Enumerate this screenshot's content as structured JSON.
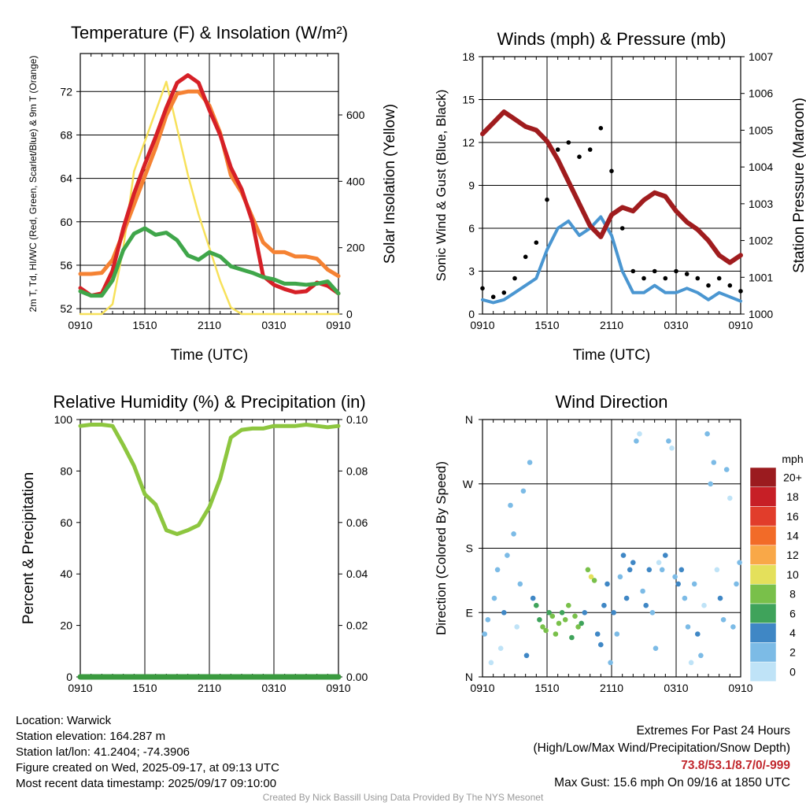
{
  "chart_data": [
    {
      "type": "line",
      "title": "Temperature (F) & Insolation (W/m²)",
      "xlabel": "Time (UTC)",
      "ylabel": "2m T, Td, HI/WC (Red, Green, Scarlet/Blue) & 9m T (Orange)",
      "y2label": "Solar Insolation (Yellow)",
      "x_ticks": [
        "0910",
        "1510",
        "2110",
        "0310",
        "0910"
      ],
      "ylim": [
        51.5,
        75.5
      ],
      "y_ticks": [
        52,
        56,
        60,
        64,
        68,
        72
      ],
      "y2lim": [
        0,
        785
      ],
      "y2_ticks": [
        0,
        200,
        400,
        600
      ],
      "x_hours": 24,
      "series": [
        {
          "color": "#d62027",
          "x": [
            0,
            1,
            2,
            3,
            4,
            5,
            6,
            7,
            8,
            9,
            10,
            11,
            12,
            13,
            14,
            15,
            16,
            17,
            18,
            19,
            20,
            21,
            22,
            23,
            24
          ],
          "values": [
            53.9,
            53.2,
            53.4,
            55.5,
            59.4,
            62.6,
            65.3,
            67.8,
            70.5,
            72.8,
            73.5,
            72.8,
            70.3,
            68.0,
            65.0,
            63.0,
            60.0,
            55.0,
            54.2,
            53.8,
            53.5,
            53.6,
            54.4,
            54.1,
            53.4
          ]
        },
        {
          "color": "#f58233",
          "x": [
            0,
            1,
            2,
            3,
            4,
            5,
            6,
            7,
            8,
            9,
            10,
            11,
            12,
            13,
            14,
            15,
            16,
            17,
            18,
            19,
            20,
            21,
            22,
            23,
            24
          ],
          "values": [
            55.2,
            55.2,
            55.3,
            56.5,
            59.0,
            61.6,
            64.2,
            66.8,
            69.8,
            71.8,
            72.0,
            72.0,
            70.7,
            68.2,
            64.3,
            62.7,
            60.4,
            58.1,
            57.2,
            57.2,
            56.8,
            56.8,
            56.6,
            55.6,
            55.0
          ]
        },
        {
          "color": "#3fa64a",
          "x": [
            0,
            1,
            2,
            3,
            4,
            5,
            6,
            7,
            8,
            9,
            10,
            11,
            12,
            13,
            14,
            15,
            16,
            17,
            18,
            19,
            20,
            21,
            22,
            23,
            24
          ],
          "values": [
            53.6,
            53.2,
            53.2,
            54.6,
            57.4,
            58.9,
            59.4,
            58.8,
            59.0,
            58.3,
            56.9,
            56.5,
            57.2,
            56.8,
            55.9,
            55.6,
            55.3,
            54.9,
            54.7,
            54.3,
            54.3,
            54.2,
            54.3,
            54.5,
            53.4
          ]
        },
        {
          "color": "#f7e15a",
          "axis": "y2",
          "x": [
            0,
            1,
            2,
            3,
            4,
            5,
            6,
            7,
            8,
            9,
            10,
            11,
            12,
            13,
            14,
            15,
            16,
            17,
            18,
            19,
            20,
            21,
            22,
            23,
            24
          ],
          "values": [
            0,
            0,
            0,
            30,
            200,
            430,
            520,
            610,
            700,
            560,
            420,
            300,
            200,
            100,
            20,
            0,
            0,
            0,
            0,
            0,
            0,
            0,
            0,
            0,
            0
          ]
        }
      ]
    },
    {
      "type": "scatter",
      "title": "Winds (mph) & Pressure (mb)",
      "xlabel": "Time (UTC)",
      "ylabel": "Sonic Wind & Gust (Blue, Black)",
      "y2label": "Station Pressure (Maroon)",
      "x_ticks": [
        "0910",
        "1510",
        "2110",
        "0310",
        "0910"
      ],
      "ylim": [
        0,
        18
      ],
      "y_ticks": [
        0,
        3,
        6,
        9,
        12,
        15,
        18
      ],
      "y2lim": [
        1000,
        1007
      ],
      "y2_ticks": [
        1000,
        1001,
        1002,
        1003,
        1004,
        1005,
        1006,
        1007
      ],
      "x_hours": 24,
      "series": [
        {
          "color": "#4a96d1",
          "x": [
            0,
            1,
            2,
            3,
            4,
            5,
            6,
            7,
            8,
            9,
            10,
            11,
            12,
            13,
            14,
            15,
            16,
            17,
            18,
            19,
            20,
            21,
            22,
            23,
            24
          ],
          "values": [
            1.0,
            0.8,
            1.0,
            1.5,
            2.0,
            2.5,
            4.5,
            6.0,
            6.5,
            5.5,
            6.0,
            6.8,
            5.5,
            3.0,
            1.5,
            1.5,
            2.0,
            1.5,
            1.5,
            1.8,
            1.5,
            1.0,
            1.5,
            1.2,
            0.9
          ]
        },
        {
          "color": "#000000",
          "x": [
            0,
            1,
            2,
            3,
            4,
            5,
            6,
            7,
            8,
            9,
            10,
            11,
            12,
            13,
            14,
            15,
            16,
            17,
            18,
            19,
            20,
            21,
            22,
            23,
            24
          ],
          "values": [
            1.8,
            1.2,
            1.5,
            2.5,
            4.0,
            5.0,
            8.0,
            11.5,
            12.0,
            11.0,
            11.5,
            13.0,
            10.0,
            6.0,
            3.0,
            2.5,
            3.0,
            2.5,
            3.0,
            2.8,
            2.5,
            2.0,
            2.5,
            2.0,
            1.6
          ]
        },
        {
          "color": "#a01c1e",
          "axis": "y2",
          "x": [
            0,
            1,
            2,
            3,
            4,
            5,
            6,
            7,
            8,
            9,
            10,
            11,
            12,
            13,
            14,
            15,
            16,
            17,
            18,
            19,
            20,
            21,
            22,
            23,
            24
          ],
          "values": [
            1004.9,
            1005.2,
            1005.5,
            1005.3,
            1005.1,
            1005.0,
            1004.7,
            1004.2,
            1003.6,
            1003.0,
            1002.4,
            1002.1,
            1002.7,
            1002.9,
            1002.8,
            1003.1,
            1003.3,
            1003.2,
            1002.8,
            1002.5,
            1002.3,
            1002.0,
            1001.6,
            1001.4,
            1001.6
          ]
        }
      ]
    },
    {
      "type": "line",
      "title": "Relative Humidity (%) & Precipitation (in)",
      "ylabel": "Percent & Precipitation",
      "x_ticks": [
        "0910",
        "1510",
        "2110",
        "0310",
        "0910"
      ],
      "ylim": [
        0,
        100
      ],
      "y_ticks": [
        0,
        20,
        40,
        60,
        80,
        100
      ],
      "y2lim": [
        0,
        0.1
      ],
      "y2_ticks": [
        "0.00",
        "0.02",
        "0.04",
        "0.06",
        "0.08",
        "0.10"
      ],
      "x_hours": 24,
      "series": [
        {
          "color": "#8dc63f",
          "x": [
            0,
            1,
            2,
            3,
            4,
            5,
            6,
            7,
            8,
            9,
            10,
            11,
            12,
            13,
            14,
            15,
            16,
            17,
            18,
            19,
            20,
            21,
            22,
            23,
            24
          ],
          "values": [
            97.5,
            98.0,
            98.0,
            97.5,
            90.0,
            82.0,
            71.0,
            67.0,
            57.0,
            55.5,
            57.0,
            59.0,
            66.0,
            77.0,
            93.0,
            96.0,
            96.5,
            96.5,
            97.5,
            97.5,
            97.5,
            98.0,
            97.5,
            97.0,
            97.5
          ]
        },
        {
          "color": "#3a9a3f",
          "axis": "y2",
          "x": [
            0,
            24
          ],
          "values": [
            0,
            0
          ]
        }
      ]
    },
    {
      "type": "scatter",
      "title": "Wind Direction",
      "ylabel": "Direction (Colored By Speed)",
      "x_ticks": [
        "0910",
        "1510",
        "2110",
        "0310",
        "0910"
      ],
      "y_ticks": [
        "N",
        "E",
        "S",
        "W",
        "N"
      ],
      "ylim": [
        0,
        360
      ],
      "x_hours": 24,
      "colorbar": {
        "title": "mph",
        "labels": [
          "0",
          "2",
          "4",
          "6",
          "8",
          "10",
          "12",
          "14",
          "16",
          "18",
          "20+"
        ],
        "colors": [
          "#bfe3f7",
          "#7cbbe6",
          "#3f87c5",
          "#3fa35b",
          "#79c04a",
          "#e4e05b",
          "#f9a848",
          "#f26b28",
          "#e13d2b",
          "#c71f26",
          "#9b1b1f"
        ]
      },
      "series": [
        {
          "x": [
            0.2,
            0.5,
            0.8,
            1.1,
            1.4,
            1.7,
            2.0,
            2.3,
            2.6,
            2.9,
            3.2,
            3.5,
            3.8,
            4.1,
            4.4,
            4.7,
            5.0,
            5.3,
            5.6,
            5.9,
            6.2,
            6.5,
            6.8,
            7.1,
            7.4,
            7.7,
            8.0,
            8.3,
            8.6,
            8.9,
            9.2,
            9.5,
            9.8,
            10.1,
            10.4,
            10.7,
            11.0,
            11.3,
            11.6,
            11.9,
            12.2,
            12.5,
            12.8,
            13.1,
            13.4,
            13.7,
            14.0,
            14.3,
            14.6,
            14.9,
            15.2,
            15.5,
            15.8,
            16.1,
            16.4,
            16.7,
            17.0,
            17.3,
            17.6,
            17.9,
            18.2,
            18.5,
            18.8,
            19.1,
            19.4,
            19.7,
            20.0,
            20.3,
            20.6,
            20.9,
            21.2,
            21.5,
            21.8,
            22.1,
            22.4,
            22.7,
            23.0,
            23.3,
            23.6,
            23.9
          ],
          "values": [
            60,
            80,
            20,
            110,
            150,
            40,
            90,
            170,
            240,
            200,
            70,
            130,
            260,
            30,
            300,
            110,
            100,
            80,
            70,
            65,
            90,
            85,
            60,
            75,
            90,
            80,
            100,
            55,
            85,
            70,
            75,
            90,
            150,
            140,
            135,
            60,
            45,
            100,
            130,
            20,
            90,
            60,
            140,
            170,
            110,
            150,
            160,
            330,
            340,
            120,
            100,
            150,
            90,
            40,
            160,
            150,
            170,
            330,
            320,
            140,
            130,
            150,
            110,
            70,
            20,
            130,
            60,
            30,
            100,
            340,
            270,
            300,
            150,
            110,
            80,
            290,
            250,
            70,
            130,
            160
          ],
          "speeds": [
            1,
            2,
            0,
            1,
            2,
            0,
            3,
            1,
            2,
            1,
            0,
            2,
            1,
            3,
            1,
            4,
            5,
            6,
            7,
            8,
            6,
            7,
            8,
            7,
            6,
            8,
            7,
            6,
            7,
            8,
            5,
            4,
            8,
            9,
            8,
            4,
            3,
            3,
            4,
            2,
            3,
            1,
            2,
            3,
            4,
            3,
            4,
            1,
            0,
            2,
            4,
            3,
            2,
            1,
            0,
            2,
            3,
            1,
            0,
            2,
            4,
            3,
            2,
            1,
            0,
            2,
            3,
            1,
            0,
            1,
            2,
            1,
            0,
            3,
            2,
            1,
            0,
            1,
            2,
            1
          ]
        }
      ]
    }
  ],
  "station": {
    "location": "Location: Warwick",
    "elevation": "Station elevation: 164.287 m",
    "latlon": "Station lat/lon: 41.2404; -74.3906",
    "created": "Figure created on Wed, 2025-09-17, at 09:13 UTC",
    "recent": "Most recent data timestamp: 2025/09/17 09:10:00"
  },
  "extremes": {
    "title": "Extremes For Past 24 Hours",
    "subtitle": "(High/Low/Max Wind/Precipitation/Snow Depth)",
    "values": "73.8/53.1/8.7/0/-999",
    "max_gust": "Max Gust: 15.6 mph On 09/16 at 1850 UTC"
  },
  "credit": "Created By Nick Bassill Using Data Provided By The NYS Mesonet"
}
